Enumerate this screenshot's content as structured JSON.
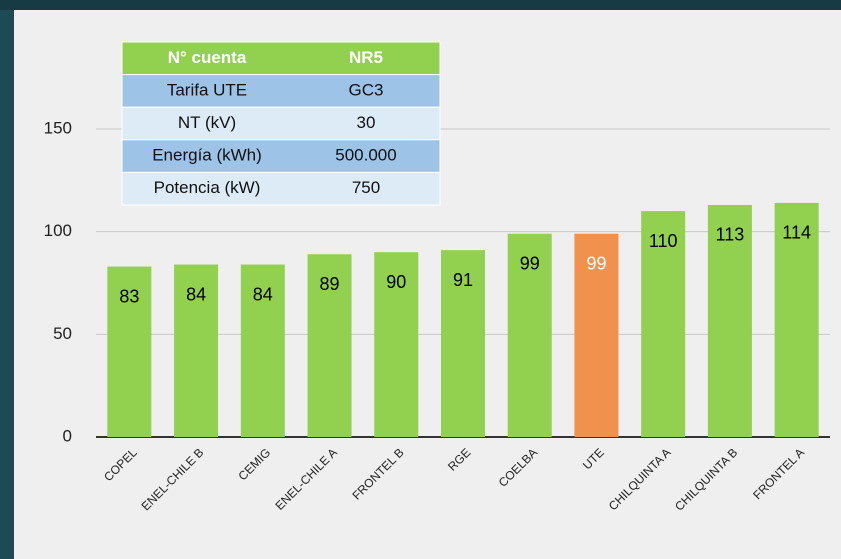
{
  "chart_data": {
    "type": "bar",
    "categories": [
      "COPEL",
      "ENEL-CHILE B",
      "CEMIG",
      "ENEL-CHILE A",
      "FRONTEL B",
      "RGE",
      "COELBA",
      "UTE",
      "CHILQUINTA A",
      "CHILQUINTA B",
      "FRONTEL A"
    ],
    "values": [
      83,
      84,
      84,
      89,
      90,
      91,
      99,
      99,
      110,
      113,
      114
    ],
    "colors": [
      "#92d050",
      "#92d050",
      "#92d050",
      "#92d050",
      "#92d050",
      "#92d050",
      "#92d050",
      "#f0914d",
      "#92d050",
      "#92d050",
      "#92d050"
    ],
    "ylim": [
      0,
      150
    ],
    "yticks": [
      0,
      50,
      100,
      150
    ],
    "grid": true,
    "table": {
      "header": [
        "N° cuenta",
        "NR5"
      ],
      "rows": [
        [
          "Tarifa UTE",
          "GC3"
        ],
        [
          "NT (kV)",
          "30"
        ],
        [
          "Energía (kWh)",
          "500.000"
        ],
        [
          "Potencia (kW)",
          "750"
        ]
      ]
    }
  }
}
